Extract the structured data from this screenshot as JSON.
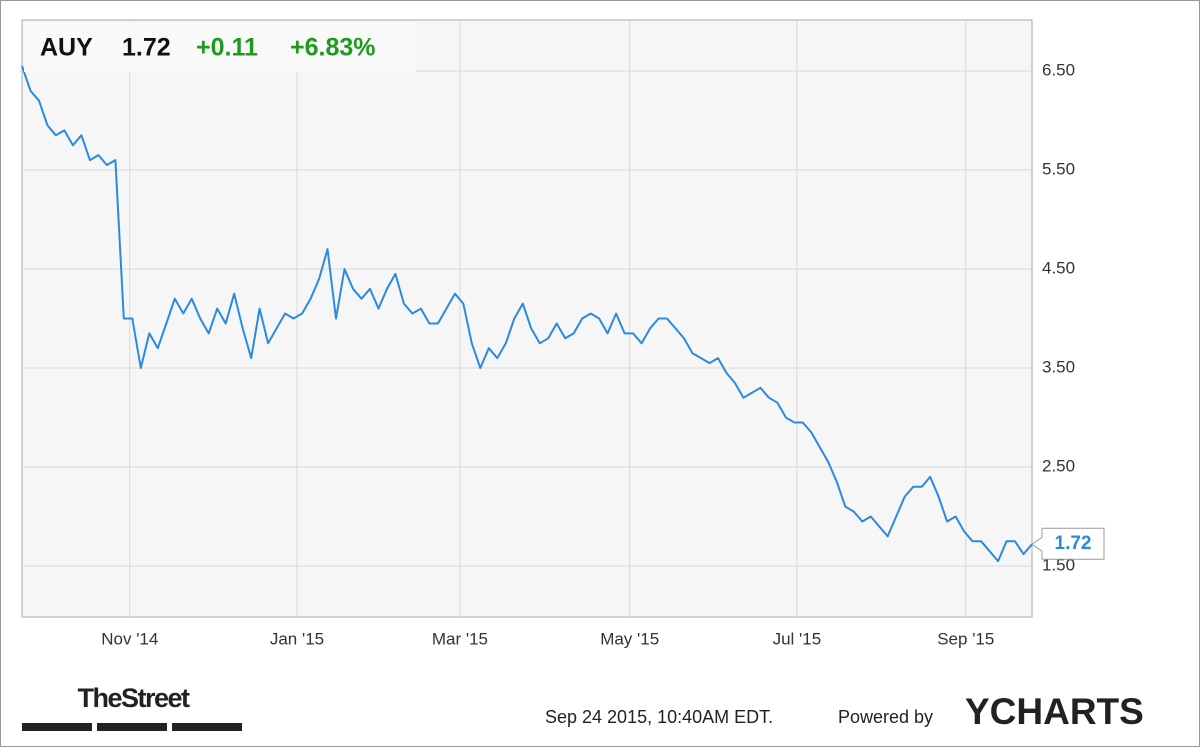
{
  "header": {
    "symbol": "AUY",
    "price": "1.72",
    "change": "+0.11",
    "change_pct": "+6.83%"
  },
  "chart_data": {
    "type": "line",
    "color": "#2b8ae0",
    "grid": true,
    "xlim": [
      0,
      119
    ],
    "ylim": [
      0.985,
      7.015
    ],
    "xticks": [
      {
        "value": 12.7,
        "label": "Nov '14"
      },
      {
        "value": 32.4,
        "label": "Jan '15"
      },
      {
        "value": 51.6,
        "label": "Mar '15"
      },
      {
        "value": 71.6,
        "label": "May '15"
      },
      {
        "value": 91.3,
        "label": "Jul '15"
      },
      {
        "value": 111.2,
        "label": "Sep '15"
      }
    ],
    "yticks": [
      {
        "value": 1.5,
        "label": "1.50"
      },
      {
        "value": 2.5,
        "label": "2.50"
      },
      {
        "value": 3.5,
        "label": "3.50"
      },
      {
        "value": 4.5,
        "label": "4.50"
      },
      {
        "value": 5.5,
        "label": "5.50"
      },
      {
        "value": 6.5,
        "label": "6.50"
      }
    ],
    "values": [
      6.55,
      6.3,
      6.2,
      5.95,
      5.85,
      5.9,
      5.75,
      5.85,
      5.6,
      5.65,
      5.55,
      5.6,
      4.0,
      4.0,
      3.5,
      3.85,
      3.7,
      3.95,
      4.2,
      4.05,
      4.2,
      4.0,
      3.85,
      4.1,
      3.95,
      4.25,
      3.9,
      3.6,
      4.1,
      3.75,
      3.9,
      4.05,
      4.0,
      4.05,
      4.2,
      4.4,
      4.7,
      4.0,
      4.5,
      4.3,
      4.2,
      4.3,
      4.1,
      4.3,
      4.45,
      4.15,
      4.05,
      4.1,
      3.95,
      3.95,
      4.1,
      4.25,
      4.15,
      3.75,
      3.5,
      3.7,
      3.6,
      3.75,
      4.0,
      4.15,
      3.9,
      3.75,
      3.8,
      3.95,
      3.8,
      3.85,
      4.0,
      4.05,
      4.0,
      3.85,
      4.05,
      3.85,
      3.85,
      3.75,
      3.9,
      4.0,
      4.0,
      3.9,
      3.8,
      3.65,
      3.6,
      3.55,
      3.6,
      3.45,
      3.35,
      3.2,
      3.25,
      3.3,
      3.2,
      3.15,
      3.0,
      2.95,
      2.95,
      2.85,
      2.7,
      2.55,
      2.35,
      2.1,
      2.05,
      1.95,
      2.0,
      1.9,
      1.8,
      2.0,
      2.2,
      2.3,
      2.3,
      2.4,
      2.2,
      1.95,
      2.0,
      1.85,
      1.75,
      1.75,
      1.65,
      1.55,
      1.75,
      1.75,
      1.62,
      1.72
    ]
  },
  "footer": {
    "brand": "TheStreet",
    "timestamp": "Sep 24 2015, 10:40AM EDT.",
    "powered": "Powered by",
    "provider": "YCHARTS"
  }
}
